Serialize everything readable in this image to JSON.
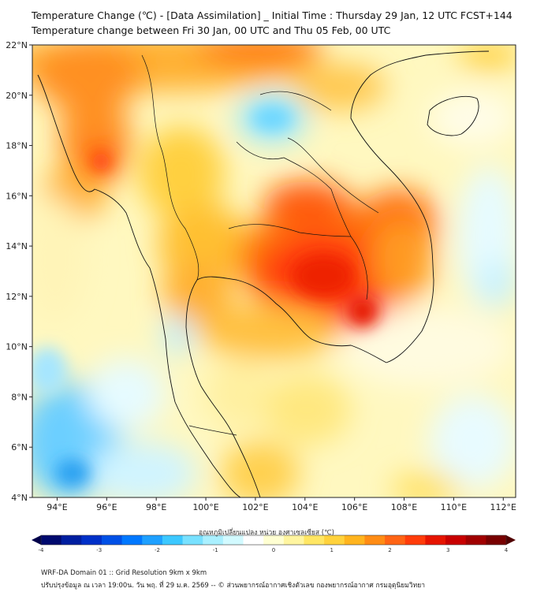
{
  "title": {
    "line1": "Temperature Change (℃) - [Data Assimilation] _ Initial Time : Thursday 29 Jan, 12 UTC FCST+144",
    "line2": "Temperature change between Fri 30 Jan, 00 UTC and Thu 05 Feb, 00 UTC"
  },
  "map": {
    "lat_range": [
      4,
      22
    ],
    "lon_range": [
      93,
      112.5
    ],
    "lat_ticks": [
      "4°N",
      "6°N",
      "8°N",
      "10°N",
      "12°N",
      "14°N",
      "16°N",
      "18°N",
      "20°N",
      "22°N"
    ],
    "lon_ticks": [
      "94°E",
      "96°E",
      "98°E",
      "100°E",
      "102°E",
      "104°E",
      "106°E",
      "108°E",
      "110°E",
      "112°E"
    ],
    "region": "Mainland Southeast Asia"
  },
  "colorbar": {
    "label": "อุณหภูมิเปลี่ยนแปลง หน่วย องศาเซลเซียส (℃)",
    "ticks": [
      "-4",
      "-3",
      "-2",
      "-1",
      "0",
      "1",
      "2",
      "3",
      "4"
    ],
    "colors": [
      "#000a6e",
      "#001ea0",
      "#0030c8",
      "#0050e6",
      "#0078ff",
      "#1ea0ff",
      "#3cc8ff",
      "#78e1ff",
      "#aaf0ff",
      "#d2faff",
      "#ffffff",
      "#ffffd2",
      "#fff5a0",
      "#ffe664",
      "#ffd23c",
      "#ffb41e",
      "#ff8c14",
      "#ff6414",
      "#ff3c0a",
      "#e61400",
      "#c80000",
      "#a00000",
      "#780000"
    ]
  },
  "footer": {
    "line1": "WRF-DA Domain 01 :: Grid Resolution 9km x 9km",
    "line2": "ปรับปรุงข้อมูล ณ เวลา 19:00น. วัน พฤ. ที่ 29 ม.ค. 2569 -- © ส่วนพยากรณ์อากาศเชิงตัวเลข กองพยากรณ์อากาศ กรมอุตุนิยมวิทยา"
  }
}
